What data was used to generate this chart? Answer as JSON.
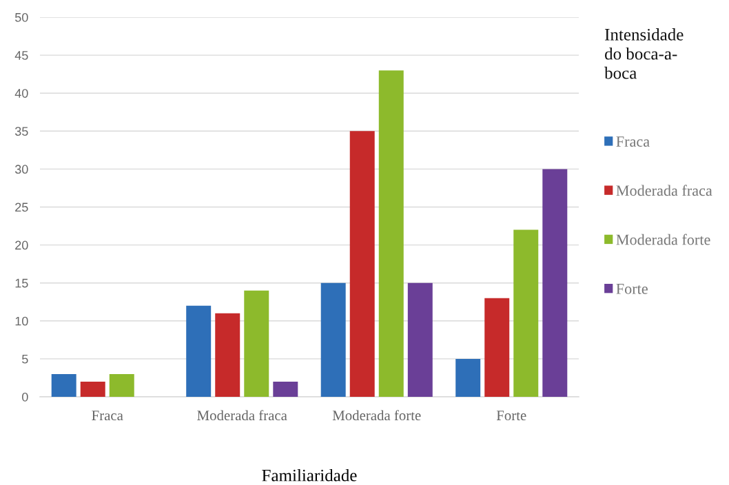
{
  "chart_data": {
    "type": "bar",
    "xlabel": "Familiaridade",
    "legend_title": "Intensidade\ndo boca-a-\nboca",
    "categories": [
      "Fraca",
      "Moderada fraca",
      "Moderada forte",
      "Forte"
    ],
    "series": [
      {
        "name": "Fraca",
        "color": "#2e6fb8",
        "values": [
          3,
          12,
          15,
          5
        ]
      },
      {
        "name": "Moderada fraca",
        "color": "#c62a2a",
        "values": [
          2,
          11,
          35,
          13
        ]
      },
      {
        "name": "Moderada forte",
        "color": "#8dba2c",
        "values": [
          3,
          14,
          43,
          22
        ]
      },
      {
        "name": "Forte",
        "color": "#6a3f97",
        "values": [
          null,
          2,
          15,
          30
        ]
      }
    ],
    "ylim": [
      0,
      50
    ],
    "yticks": [
      0,
      5,
      10,
      15,
      20,
      25,
      30,
      35,
      40,
      45,
      50
    ],
    "grid": "y",
    "legend": "right"
  }
}
